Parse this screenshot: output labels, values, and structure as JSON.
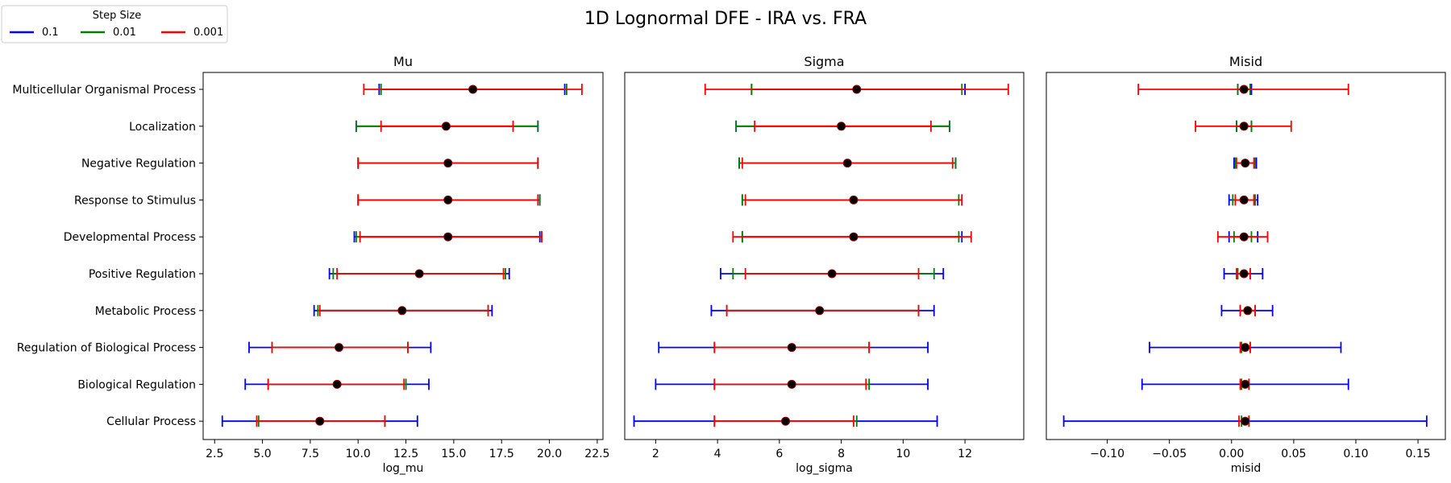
{
  "figure": {
    "title": "1D Lognormal DFE - IRA vs. FRA",
    "legend": {
      "title": "Step Size",
      "placement": "top-left",
      "entries": [
        {
          "label": "0.1",
          "color": "#0000ff"
        },
        {
          "label": "0.01",
          "color": "#008000"
        },
        {
          "label": "0.001",
          "color": "#ff0000"
        }
      ]
    },
    "point_color": "#000000",
    "point_edge_color": "#8b0000"
  },
  "chart_data": [
    {
      "type": "errorbar",
      "title": "Mu",
      "xlabel": "log_mu",
      "xlim": [
        1.9,
        22.8
      ],
      "xticks": [
        2.5,
        5.0,
        7.5,
        10.0,
        12.5,
        15.0,
        17.5,
        20.0,
        22.5
      ],
      "xtick_labels": [
        "2.5",
        "5.0",
        "7.5",
        "10.0",
        "12.5",
        "15.0",
        "17.5",
        "20.0",
        "22.5"
      ],
      "categories": [
        "Multicellular Organismal Process",
        "Localization",
        "Negative Regulation",
        "Response to Stimulus",
        "Developmental Process",
        "Positive Regulation",
        "Metabolic Process",
        "Regulation of Biological Process",
        "Biological Regulation",
        "Cellular Process"
      ],
      "points": [
        16.0,
        14.6,
        14.7,
        14.7,
        14.7,
        13.2,
        12.3,
        9.0,
        8.9,
        8.0
      ],
      "series": [
        {
          "name": "0.1",
          "color": "#0000ff",
          "intervals": [
            [
              11.1,
              20.8
            ],
            [
              9.9,
              19.4
            ],
            [
              10.0,
              19.4
            ],
            [
              10.0,
              19.5
            ],
            [
              9.8,
              19.5
            ],
            [
              8.5,
              17.9
            ],
            [
              7.7,
              17.0
            ],
            [
              4.3,
              13.8
            ],
            [
              4.1,
              13.7
            ],
            [
              2.9,
              13.1
            ]
          ]
        },
        {
          "name": "0.01",
          "color": "#008000",
          "intervals": [
            [
              11.2,
              20.9
            ],
            [
              9.9,
              19.4
            ],
            [
              10.0,
              19.4
            ],
            [
              10.0,
              19.5
            ],
            [
              9.9,
              19.6
            ],
            [
              8.7,
              17.7
            ],
            [
              7.9,
              16.8
            ],
            [
              5.5,
              12.6
            ],
            [
              5.3,
              12.5
            ],
            [
              4.8,
              11.4
            ]
          ]
        },
        {
          "name": "0.001",
          "color": "#ff0000",
          "intervals": [
            [
              10.3,
              21.7
            ],
            [
              11.2,
              18.1
            ],
            [
              10.0,
              19.4
            ],
            [
              10.0,
              19.4
            ],
            [
              10.1,
              19.6
            ],
            [
              8.9,
              17.6
            ],
            [
              8.0,
              16.8
            ],
            [
              5.5,
              12.6
            ],
            [
              5.3,
              12.4
            ],
            [
              4.7,
              11.4
            ]
          ]
        }
      ]
    },
    {
      "type": "errorbar",
      "title": "Sigma",
      "xlabel": "log_sigma",
      "xlim": [
        1.0,
        13.9
      ],
      "xticks": [
        2,
        4,
        6,
        8,
        10,
        12
      ],
      "xtick_labels": [
        "2",
        "4",
        "6",
        "8",
        "10",
        "12"
      ],
      "categories": [
        "Multicellular Organismal Process",
        "Localization",
        "Negative Regulation",
        "Response to Stimulus",
        "Developmental Process",
        "Positive Regulation",
        "Metabolic Process",
        "Regulation of Biological Process",
        "Biological Regulation",
        "Cellular Process"
      ],
      "points": [
        8.5,
        8.0,
        8.2,
        8.4,
        8.4,
        7.7,
        7.3,
        6.4,
        6.4,
        6.2
      ],
      "series": [
        {
          "name": "0.1",
          "color": "#0000ff",
          "intervals": [
            [
              5.1,
              12.0
            ],
            [
              4.6,
              11.5
            ],
            [
              4.7,
              11.7
            ],
            [
              4.8,
              11.9
            ],
            [
              4.8,
              11.9
            ],
            [
              4.1,
              11.3
            ],
            [
              3.8,
              11.0
            ],
            [
              2.1,
              10.8
            ],
            [
              2.0,
              10.8
            ],
            [
              1.3,
              11.1
            ]
          ]
        },
        {
          "name": "0.01",
          "color": "#008000",
          "intervals": [
            [
              5.1,
              11.9
            ],
            [
              4.6,
              11.5
            ],
            [
              4.7,
              11.7
            ],
            [
              4.8,
              11.8
            ],
            [
              4.8,
              11.8
            ],
            [
              4.5,
              11.0
            ],
            [
              4.3,
              10.5
            ],
            [
              3.9,
              8.9
            ],
            [
              3.9,
              8.9
            ],
            [
              3.9,
              8.5
            ]
          ]
        },
        {
          "name": "0.001",
          "color": "#ff0000",
          "intervals": [
            [
              3.6,
              13.4
            ],
            [
              5.2,
              10.9
            ],
            [
              4.8,
              11.6
            ],
            [
              4.9,
              11.9
            ],
            [
              4.5,
              12.2
            ],
            [
              4.9,
              10.5
            ],
            [
              4.3,
              10.5
            ],
            [
              3.9,
              8.9
            ],
            [
              3.9,
              8.8
            ],
            [
              3.9,
              8.4
            ]
          ]
        }
      ]
    },
    {
      "type": "errorbar",
      "title": "Misid",
      "xlabel": "misid",
      "xlim": [
        -0.149,
        0.172
      ],
      "xticks": [
        -0.1,
        -0.05,
        0.0,
        0.05,
        0.1,
        0.15
      ],
      "xtick_labels": [
        "−0.10",
        "−0.05",
        "0.00",
        "0.05",
        "0.10",
        "0.15"
      ],
      "categories": [
        "Multicellular Organismal Process",
        "Localization",
        "Negative Regulation",
        "Response to Stimulus",
        "Developmental Process",
        "Positive Regulation",
        "Metabolic Process",
        "Regulation of Biological Process",
        "Biological Regulation",
        "Cellular Process"
      ],
      "points": [
        0.01,
        0.01,
        0.011,
        0.01,
        0.01,
        0.01,
        0.013,
        0.011,
        0.011,
        0.011
      ],
      "series": [
        {
          "name": "0.1",
          "color": "#0000ff",
          "intervals": [
            [
              0.005,
              0.016
            ],
            [
              0.004,
              0.016
            ],
            [
              0.002,
              0.02
            ],
            [
              -0.002,
              0.021
            ],
            [
              -0.002,
              0.021
            ],
            [
              -0.006,
              0.025
            ],
            [
              -0.008,
              0.033
            ],
            [
              -0.066,
              0.088
            ],
            [
              -0.072,
              0.094
            ],
            [
              -0.135,
              0.157
            ]
          ]
        },
        {
          "name": "0.01",
          "color": "#008000",
          "intervals": [
            [
              0.005,
              0.015
            ],
            [
              0.004,
              0.016
            ],
            [
              0.003,
              0.019
            ],
            [
              0.001,
              0.019
            ],
            [
              0.002,
              0.016
            ],
            [
              0.005,
              0.015
            ],
            [
              0.007,
              0.019
            ],
            [
              0.008,
              0.015
            ],
            [
              0.008,
              0.014
            ],
            [
              0.008,
              0.014
            ]
          ]
        },
        {
          "name": "0.001",
          "color": "#ff0000",
          "intervals": [
            [
              -0.075,
              0.094
            ],
            [
              -0.029,
              0.048
            ],
            [
              0.004,
              0.018
            ],
            [
              0.003,
              0.018
            ],
            [
              -0.011,
              0.029
            ],
            [
              0.004,
              0.015
            ],
            [
              0.007,
              0.019
            ],
            [
              0.007,
              0.015
            ],
            [
              0.007,
              0.014
            ],
            [
              0.006,
              0.014
            ]
          ]
        }
      ]
    }
  ]
}
